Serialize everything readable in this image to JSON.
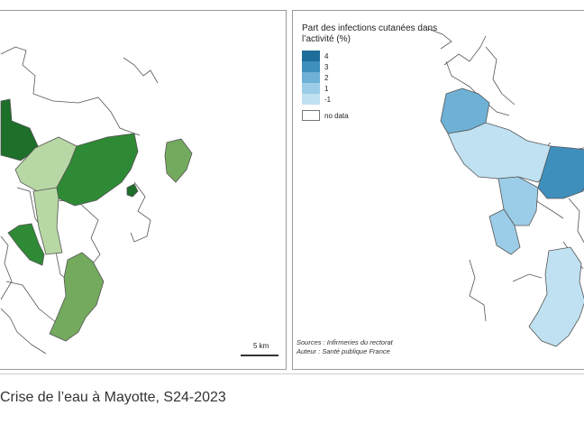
{
  "maps": {
    "left": {
      "scale_label": "5 km",
      "palette": {
        "darkest": "#1d6f2a",
        "dark": "#2f8a35",
        "mid": "#74aa5e",
        "light": "#b7d8a4",
        "outline": "#555555"
      }
    },
    "right": {
      "legend": {
        "title": "Part des infections cutanées dans l’activité (%)",
        "classes": [
          {
            "label": "4",
            "color": "#1e6e99"
          },
          {
            "label": "3",
            "color": "#3f8fbd"
          },
          {
            "label": "2",
            "color": "#6fb1d6"
          },
          {
            "label": "1",
            "color": "#9ccde8"
          },
          {
            "label": "-1",
            "color": "#bfe1f1"
          }
        ],
        "no_data_label": "no data"
      },
      "sources": "Sources : Infirmeries du rectorat",
      "author": "Auteur : Santé publique France"
    }
  },
  "caption": "Crise de l’eau à Mayotte, S24-2023"
}
